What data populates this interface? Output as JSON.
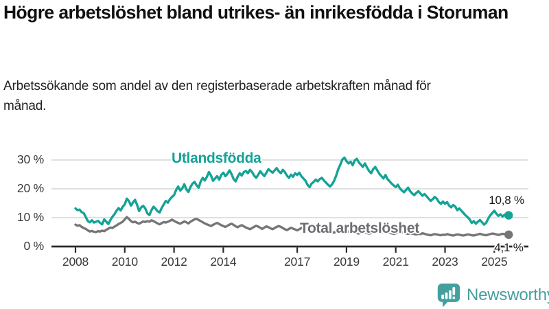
{
  "header": {
    "title": "Högre arbetslöshet bland utrikes- än inrikesfödda i Storuman",
    "subtitle": "Arbetssökande som andel av den registerbaserade arbetskraften månad för månad."
  },
  "chart_data": {
    "type": "line",
    "title": "Högre arbetslöshet bland utrikes- än inrikesfödda i Storuman",
    "subtitle": "Arbetssökande som andel av den registerbaserade arbetskraften månad för månad.",
    "unit": "%",
    "x_frequency": "monthly",
    "x_start": "2008-01",
    "x_end": "2025-08",
    "ylim": [
      0,
      33
    ],
    "grid": "horizontal",
    "legend_position": "inline-labels",
    "yticks": [
      {
        "label": "0 %",
        "value": 0
      },
      {
        "label": "10 %",
        "value": 10
      },
      {
        "label": "20 %",
        "value": 20
      },
      {
        "label": "30 %",
        "value": 30
      }
    ],
    "xticks": [
      {
        "label": "2008",
        "value": 2008
      },
      {
        "label": "2010",
        "value": 2010
      },
      {
        "label": "2012",
        "value": 2012
      },
      {
        "label": "2014",
        "value": 2014
      },
      {
        "label": "2017",
        "value": 2017
      },
      {
        "label": "2019",
        "value": 2019
      },
      {
        "label": "2021",
        "value": 2021
      },
      {
        "label": "2023",
        "value": 2023
      },
      {
        "label": "2025",
        "value": 2025
      }
    ],
    "series": [
      {
        "name": "Utlandsfödda",
        "color": "#14a396",
        "end_label": "10,8 %",
        "end_value": 10.8,
        "values": [
          13.2,
          12.6,
          12.8,
          11.9,
          11.6,
          10.2,
          8.8,
          8.4,
          9.1,
          8.3,
          8.6,
          8.9,
          8.2,
          7.7,
          9.4,
          8.6,
          7.8,
          9.2,
          10.3,
          11.2,
          12.4,
          13.3,
          12.5,
          13.8,
          14.6,
          16.6,
          15.8,
          14.2,
          15.3,
          16.2,
          14.4,
          12.3,
          13.6,
          14.1,
          13.2,
          11.5,
          10.9,
          12.6,
          13.8,
          13.1,
          12.2,
          11.8,
          13.4,
          14.6,
          15.8,
          15.2,
          16.4,
          17.2,
          17.8,
          19.6,
          20.8,
          19.4,
          20.2,
          21.6,
          19.8,
          18.9,
          20.6,
          21.8,
          22.4,
          21.2,
          20.4,
          22.6,
          23.8,
          22.9,
          24.2,
          25.8,
          24.6,
          22.8,
          23.6,
          24.4,
          23.2,
          24.8,
          25.6,
          24.4,
          25.2,
          26.4,
          25.1,
          23.4,
          22.6,
          24.2,
          25.4,
          24.6,
          25.8,
          26.2,
          25.4,
          26.6,
          25.8,
          24.6,
          23.8,
          24.9,
          26.1,
          25.2,
          24.4,
          25.6,
          26.8,
          26.2,
          25.6,
          26.4,
          27.2,
          26.1,
          25.4,
          26.6,
          25.8,
          24.6,
          23.8,
          24.9,
          24.2,
          25.4,
          24.8,
          25.6,
          24.4,
          23.6,
          22.8,
          21.4,
          20.6,
          21.8,
          22.4,
          23.2,
          22.6,
          23.4,
          23.8,
          22.9,
          22.2,
          21.4,
          20.8,
          21.6,
          22.8,
          24.6,
          26.8,
          28.4,
          30.2,
          30.8,
          29.6,
          28.8,
          29.4,
          28.2,
          29.8,
          30.4,
          29.2,
          28.4,
          27.6,
          28.8,
          27.4,
          26.2,
          25.4,
          26.8,
          27.6,
          26.4,
          25.2,
          24.4,
          23.6,
          24.8,
          23.4,
          22.6,
          21.8,
          21.2,
          20.6,
          21.4,
          20.2,
          19.4,
          18.8,
          19.6,
          20.4,
          19.2,
          18.4,
          17.8,
          18.6,
          19.2,
          18.4,
          17.6,
          18.2,
          17.4,
          16.6,
          15.8,
          16.4,
          17.2,
          16.6,
          15.4,
          14.8,
          15.6,
          14.8,
          15.4,
          14.2,
          13.6,
          14.4,
          13.8,
          12.6,
          13.2,
          12.4,
          11.6,
          10.8,
          10.2,
          9.4,
          8.2,
          8.8,
          7.9,
          8.6,
          9.2,
          8.4,
          7.6,
          8.2,
          9.6,
          10.8,
          11.6,
          12.4,
          11.4,
          10.6,
          11.2,
          10.4,
          11.0,
          10.4,
          10.8
        ]
      },
      {
        "name": "Total arbetslöshet",
        "color": "#767679",
        "end_label": "4,1 %",
        "end_value": 4.1,
        "values": [
          7.6,
          7.2,
          7.4,
          6.8,
          6.4,
          6.1,
          5.6,
          5.2,
          5.4,
          5.1,
          5.0,
          5.3,
          5.2,
          5.5,
          5.3,
          5.8,
          6.2,
          6.6,
          6.4,
          6.9,
          7.3,
          7.8,
          8.2,
          8.6,
          9.4,
          10.2,
          9.6,
          8.8,
          8.4,
          8.6,
          8.2,
          7.9,
          8.3,
          8.7,
          8.5,
          8.8,
          8.6,
          9.1,
          8.8,
          8.4,
          8.0,
          7.7,
          8.1,
          8.5,
          8.3,
          8.6,
          8.9,
          9.3,
          8.9,
          8.5,
          8.2,
          7.9,
          8.3,
          8.7,
          8.4,
          8.0,
          8.6,
          9.0,
          9.4,
          9.6,
          9.2,
          8.8,
          8.4,
          8.0,
          7.7,
          7.4,
          7.1,
          7.5,
          7.9,
          8.2,
          7.8,
          7.4,
          7.1,
          6.8,
          7.2,
          7.6,
          7.9,
          7.5,
          7.0,
          6.7,
          7.1,
          7.4,
          7.0,
          6.6,
          6.3,
          6.0,
          6.4,
          6.8,
          7.2,
          6.9,
          6.5,
          6.1,
          6.6,
          7.0,
          6.7,
          6.3,
          6.0,
          6.4,
          6.8,
          7.1,
          6.8,
          6.4,
          6.0,
          5.7,
          6.1,
          6.5,
          6.2,
          5.9,
          5.6,
          6.0,
          6.4,
          6.7,
          6.4,
          6.0,
          5.7,
          5.4,
          5.8,
          6.1,
          5.8,
          5.5,
          5.2,
          5.6,
          5.9,
          5.6,
          5.3,
          5.0,
          4.8,
          5.1,
          5.4,
          5.2,
          4.9,
          4.7,
          4.9,
          5.2,
          5.5,
          5.2,
          4.9,
          4.7,
          4.5,
          4.8,
          5.1,
          4.9,
          4.7,
          4.5,
          4.7,
          5.0,
          5.3,
          5.6,
          5.4,
          5.1,
          4.9,
          5.2,
          5.0,
          4.8,
          4.6,
          4.4,
          4.6,
          4.9,
          5.2,
          5.0,
          4.8,
          4.6,
          4.4,
          4.7,
          4.5,
          4.3,
          4.2,
          4.4,
          4.3,
          4.6,
          4.4,
          4.2,
          4.0,
          3.9,
          4.1,
          4.3,
          4.2,
          4.0,
          3.9,
          4.1,
          4.0,
          4.3,
          4.1,
          3.9,
          3.8,
          4.0,
          4.2,
          4.1,
          3.9,
          3.8,
          4.0,
          4.2,
          4.1,
          3.9,
          3.8,
          4.0,
          4.2,
          4.4,
          4.2,
          4.0,
          3.9,
          4.1,
          4.3,
          4.5,
          4.4,
          4.2,
          4.0,
          4.2,
          4.4,
          4.3,
          4.2,
          4.1
        ]
      }
    ]
  },
  "colors": {
    "accent_teal": "#14a396",
    "line_gray": "#767679",
    "axis": "#2b2b2b",
    "gridline": "#dcdcdc"
  },
  "branding": {
    "name": "Newsworthy",
    "color": "#43a09e"
  }
}
